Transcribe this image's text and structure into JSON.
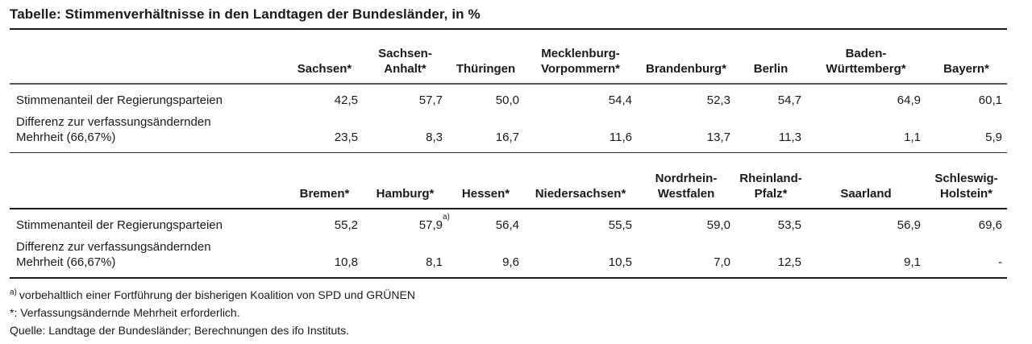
{
  "page": {
    "title": "Tabelle: Stimmenverhältnisse in den Landtagen der Bundesländer, in %"
  },
  "row_labels": {
    "share": "Stimmenanteil der Regierungsparteien",
    "diff": "Differenz zur verfassungsändernden\nMehrheit (66,67%)"
  },
  "table1": {
    "headers": [
      "Sachsen*",
      "Sachsen-\nAnhalt*",
      "Thüringen",
      "Mecklenburg-\nVorpommern*",
      "Brandenburg*",
      "Berlin",
      "Baden-\nWürttemberg*",
      "Bayern*"
    ],
    "share": [
      "42,5",
      "57,7",
      "50,0",
      "54,4",
      "52,3",
      "54,7",
      "64,9",
      "60,1"
    ],
    "diff": [
      "23,5",
      "8,3",
      "16,7",
      "11,6",
      "13,7",
      "11,3",
      "1,1",
      "5,9"
    ]
  },
  "table2": {
    "headers": [
      "Bremen*",
      "Hamburg*",
      "Hessen*",
      "Niedersachsen*",
      "Nordrhein-\nWestfalen",
      "Rheinland-\nPfalz*",
      "Saarland",
      "Schleswig-\nHolstein*"
    ],
    "share": [
      "55,2",
      "57,9",
      "56,4",
      "55,5",
      "59,0",
      "53,5",
      "56,9",
      "69,6"
    ],
    "share_note_marker": "a)",
    "diff": [
      "10,8",
      "8,1",
      "9,6",
      "10,5",
      "7,0",
      "12,5",
      "9,1",
      "-"
    ]
  },
  "footnotes": {
    "a_marker": "a)",
    "a_text": "vorbehaltlich einer Fortführung der bisherigen Koalition von SPD und GRÜNEN",
    "star": "*: Verfassungsändernde Mehrheit erforderlich.",
    "source": "Quelle: Landtage der Bundesländer; Berechnungen des ifo Instituts."
  }
}
